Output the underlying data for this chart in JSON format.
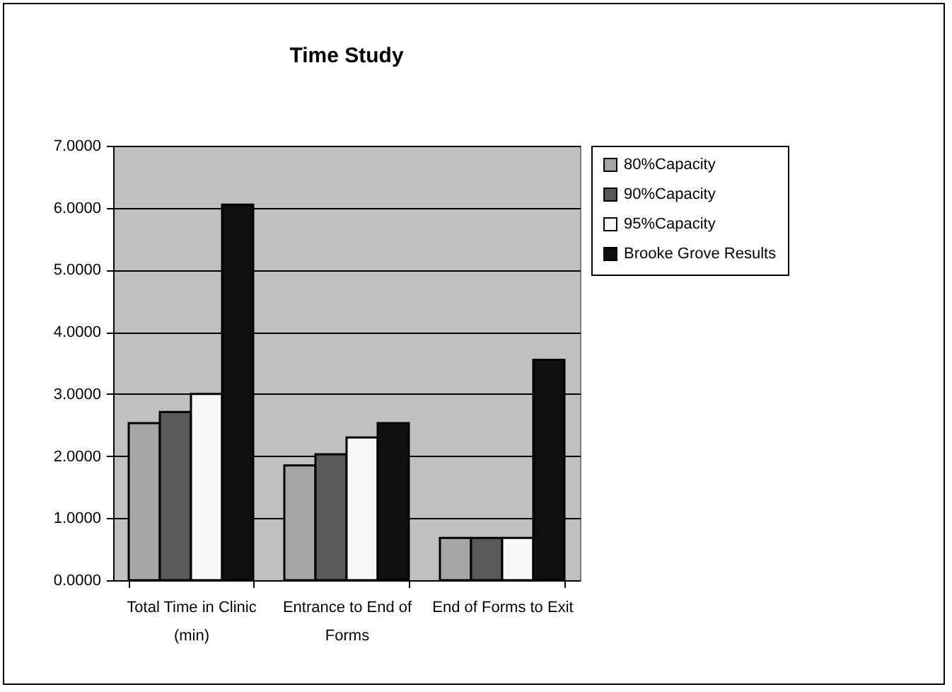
{
  "chart_data": {
    "type": "bar",
    "title": "Time Study",
    "categories": [
      "Total Time in Clinic (min)",
      "Entrance to End of Forms",
      "End of Forms to Exit"
    ],
    "series": [
      {
        "name": "80%Capacity",
        "color": "#a6a6a6",
        "values": [
          2.53,
          1.85,
          0.68
        ]
      },
      {
        "name": "90%Capacity",
        "color": "#595959",
        "values": [
          2.71,
          2.03,
          0.68
        ]
      },
      {
        "name": "95%Capacity",
        "color": "#f8f8f8",
        "values": [
          3.0,
          2.3,
          0.68
        ]
      },
      {
        "name": "Brooke Grove Results",
        "color": "#0f0f0f",
        "values": [
          6.05,
          2.53,
          3.55
        ]
      }
    ],
    "ylim": [
      0,
      7
    ],
    "yticks": [
      {
        "value": 0,
        "label": "0.0000"
      },
      {
        "value": 1,
        "label": "1.0000"
      },
      {
        "value": 2,
        "label": "2.0000"
      },
      {
        "value": 3,
        "label": "3.0000"
      },
      {
        "value": 4,
        "label": "4.0000"
      },
      {
        "value": 5,
        "label": "5.0000"
      },
      {
        "value": 6,
        "label": "6.0000"
      },
      {
        "value": 7,
        "label": "7.0000"
      }
    ],
    "grid": "y",
    "legend": "right"
  }
}
